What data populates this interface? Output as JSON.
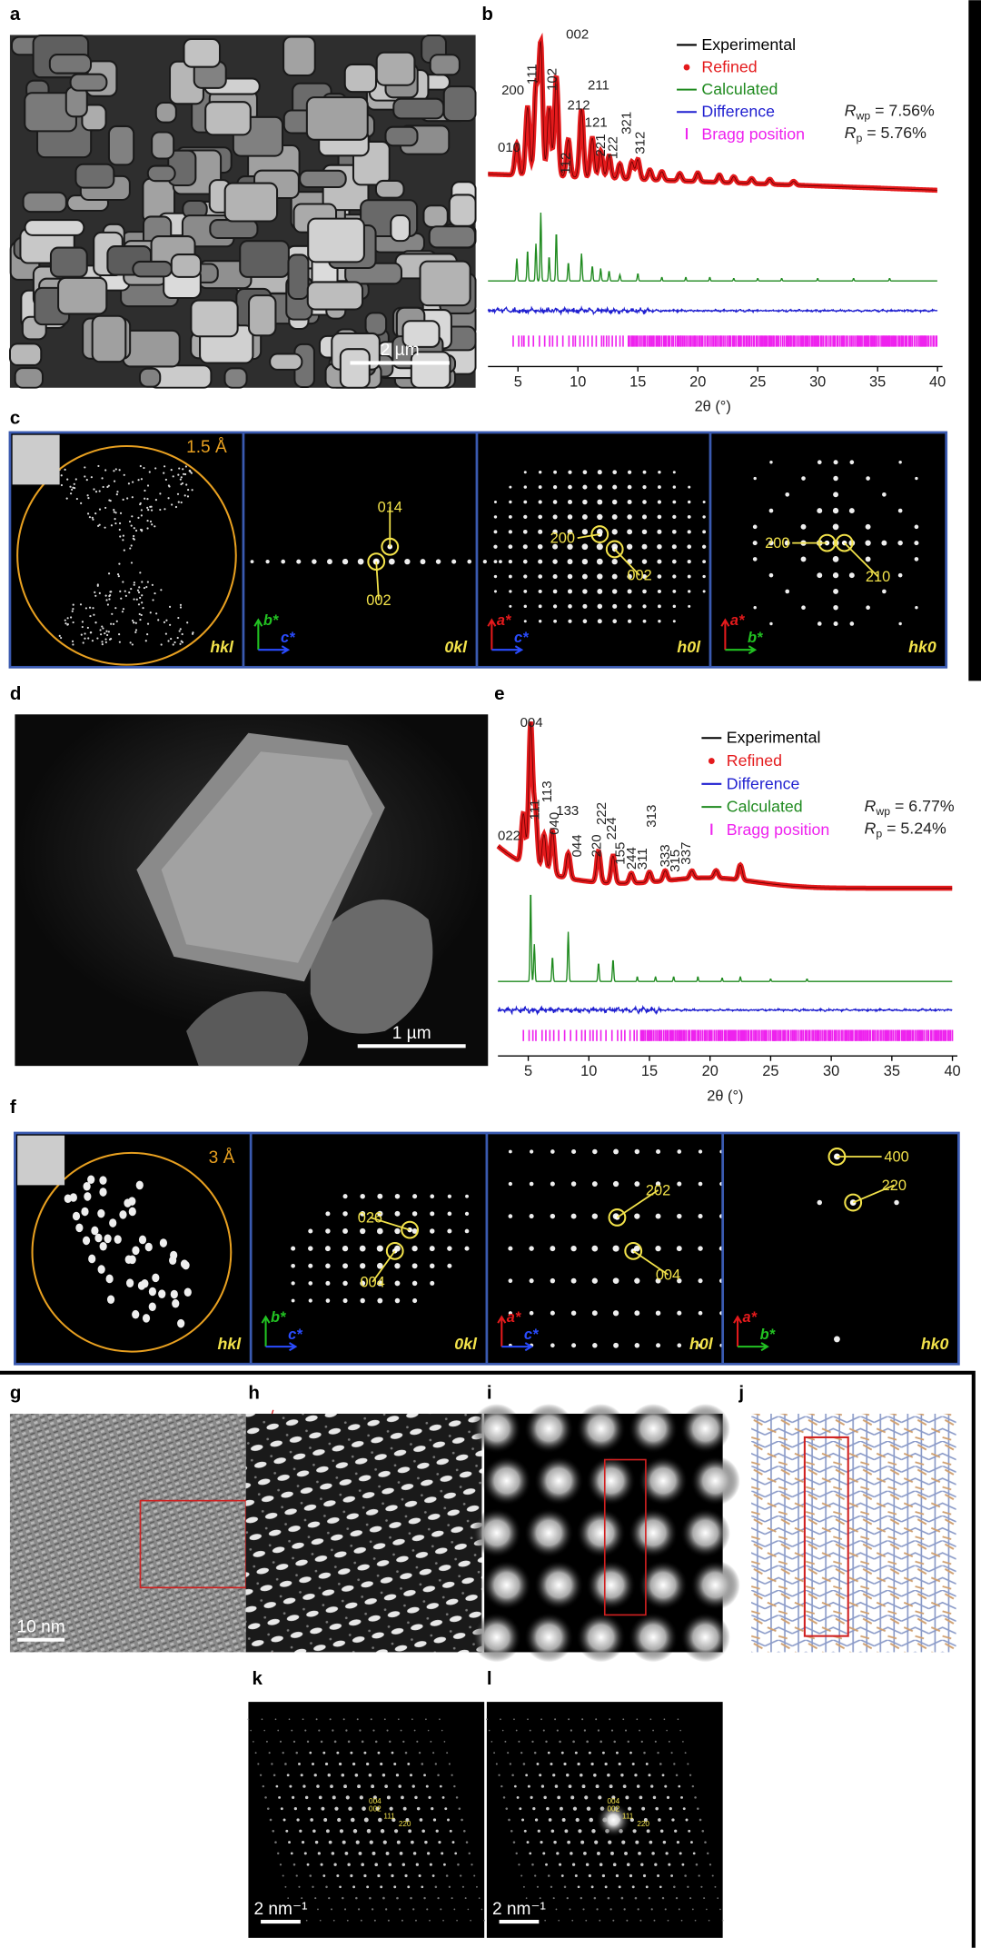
{
  "panel_a": {
    "label": "a",
    "scale_bar": "2 µm"
  },
  "panel_b": {
    "label": "b",
    "peaks": [
      "010",
      "200",
      "111",
      "002",
      "102",
      "211",
      "112",
      "212",
      "121",
      "221",
      "122",
      "321",
      "312"
    ],
    "legend": [
      {
        "name": "Experimental",
        "color": "#000000",
        "marker": "line"
      },
      {
        "name": "Refined",
        "color": "#e41a1c",
        "marker": "dot"
      },
      {
        "name": "Calculated",
        "color": "#1f8a1f",
        "marker": "line"
      },
      {
        "name": "Difference",
        "color": "#1f1fd0",
        "marker": "line"
      },
      {
        "name": "Bragg position",
        "color": "#ee22ee",
        "marker": "tick"
      }
    ],
    "r_factors": [
      {
        "symbol": "R",
        "subscript": "wp",
        "text": " = 7.56%"
      },
      {
        "symbol": "R",
        "subscript": "p",
        "text": " = 5.76%"
      }
    ],
    "x_axis": {
      "label": "2θ (°)",
      "xlim": [
        2.5,
        40
      ],
      "xticks": [
        5,
        10,
        15,
        20,
        25,
        30,
        35,
        40
      ]
    }
  },
  "panel_c": {
    "label": "c",
    "subpanels": [
      {
        "index": "hkl",
        "resolution": "1.5 Å"
      },
      {
        "index": "0kl",
        "axes": [
          "b*",
          "c*"
        ],
        "spots": [
          "014",
          "002"
        ]
      },
      {
        "index": "h0l",
        "axes": [
          "a*",
          "c*"
        ],
        "spots": [
          "200",
          "002"
        ]
      },
      {
        "index": "hk0",
        "axes": [
          "a*",
          "b*"
        ],
        "spots": [
          "200",
          "210"
        ]
      }
    ]
  },
  "panel_d": {
    "label": "d",
    "scale_bar": "1 µm"
  },
  "panel_e": {
    "label": "e",
    "peaks": [
      "004",
      "022",
      "111",
      "113",
      "040",
      "133",
      "044",
      "220",
      "222",
      "224",
      "155",
      "244",
      "311",
      "313",
      "333",
      "315",
      "337"
    ],
    "legend": [
      {
        "name": "Experimental",
        "color": "#000000",
        "marker": "line"
      },
      {
        "name": "Refined",
        "color": "#e41a1c",
        "marker": "dot"
      },
      {
        "name": "Difference",
        "color": "#1f1fd0",
        "marker": "line"
      },
      {
        "name": "Calculated",
        "color": "#1f8a1f",
        "marker": "line"
      },
      {
        "name": "Bragg position",
        "color": "#ee22ee",
        "marker": "tick"
      }
    ],
    "r_factors": [
      {
        "symbol": "R",
        "subscript": "wp",
        "text": " = 6.77%"
      },
      {
        "symbol": "R",
        "subscript": "p",
        "text": " = 5.24%"
      }
    ],
    "x_axis": {
      "label": "2θ (°)",
      "xlim": [
        2.5,
        40
      ],
      "xticks": [
        5,
        10,
        15,
        20,
        25,
        30,
        35,
        40
      ]
    }
  },
  "panel_f": {
    "label": "f",
    "subpanels": [
      {
        "index": "hkl",
        "resolution": "3 Å"
      },
      {
        "index": "0kl",
        "axes": [
          "b*",
          "c*"
        ],
        "spots": [
          "026",
          "004"
        ]
      },
      {
        "index": "h0l",
        "axes": [
          "a*",
          "c*"
        ],
        "spots": [
          "202",
          "004"
        ]
      },
      {
        "index": "hk0",
        "axes": [
          "a*",
          "b*"
        ],
        "spots": [
          "400",
          "220"
        ]
      }
    ]
  },
  "panel_g": {
    "label": "g",
    "scale_bar": "10 nm"
  },
  "panel_h": {
    "label": "h"
  },
  "panel_i": {
    "label": "i"
  },
  "panel_j": {
    "label": "j"
  },
  "panel_k": {
    "label": "k",
    "scale_bar": "2 nm⁻¹",
    "spots": [
      "004",
      "002",
      "111",
      "220"
    ]
  },
  "panel_l": {
    "label": "l",
    "scale_bar": "2 nm⁻¹",
    "spots": [
      "004",
      "002",
      "111",
      "220"
    ]
  }
}
